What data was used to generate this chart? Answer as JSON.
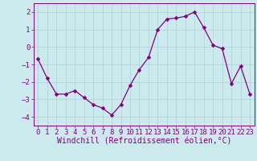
{
  "x": [
    0,
    1,
    2,
    3,
    4,
    5,
    6,
    7,
    8,
    9,
    10,
    11,
    12,
    13,
    14,
    15,
    16,
    17,
    18,
    19,
    20,
    21,
    22,
    23
  ],
  "y": [
    -0.7,
    -1.8,
    -2.7,
    -2.7,
    -2.5,
    -2.9,
    -3.3,
    -3.5,
    -3.9,
    -3.3,
    -2.2,
    -1.3,
    -0.6,
    1.0,
    1.6,
    1.65,
    1.75,
    2.0,
    1.1,
    0.1,
    -0.1,
    -2.1,
    -1.1,
    -2.7
  ],
  "line_color": "#800080",
  "marker": "D",
  "marker_size": 2.5,
  "bg_color": "#cce9ee",
  "grid_color": "#aad4d8",
  "xlabel": "Windchill (Refroidissement éolien,°C)",
  "xlabel_fontsize": 7,
  "tick_fontsize": 6.5,
  "ylim": [
    -4.5,
    2.5
  ],
  "xlim": [
    -0.5,
    23.5
  ],
  "yticks": [
    -4,
    -3,
    -2,
    -1,
    0,
    1,
    2
  ],
  "xticks": [
    0,
    1,
    2,
    3,
    4,
    5,
    6,
    7,
    8,
    9,
    10,
    11,
    12,
    13,
    14,
    15,
    16,
    17,
    18,
    19,
    20,
    21,
    22,
    23
  ]
}
